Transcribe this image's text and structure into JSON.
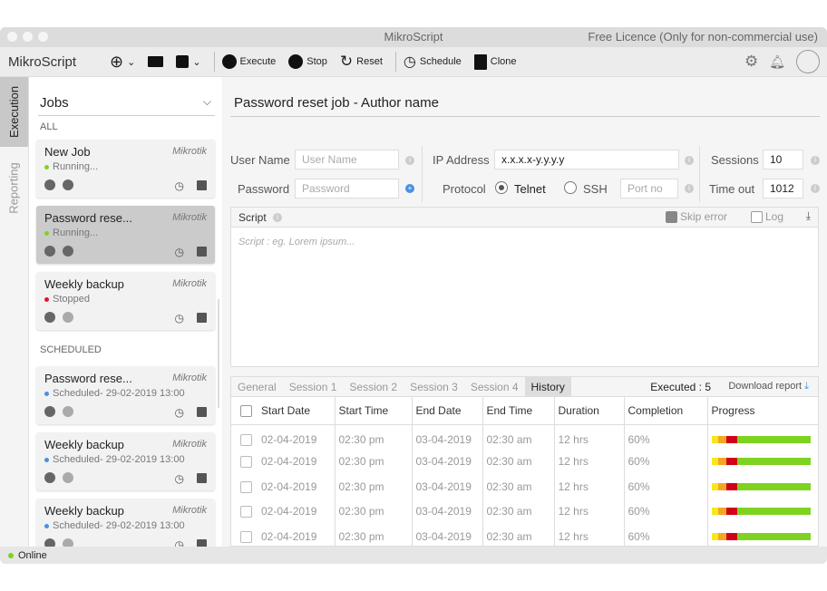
{
  "window": {
    "title": "MikroScript",
    "licence": "Free Licence (Only for non-commercial use)"
  },
  "toolbar": {
    "brand": "MikroScript",
    "execute": "Execute",
    "stop": "Stop",
    "reset": "Reset",
    "schedule": "Schedule",
    "clone": "Clone"
  },
  "vtabs": [
    "Execution",
    "Reporting"
  ],
  "sidebar": {
    "title": "Jobs",
    "section_all": "ALL",
    "section_scheduled": "SCHEDULED",
    "jobs": [
      {
        "name": "New Job",
        "vendor": "Mikrotik",
        "status": "Running...",
        "status_color": "#7ed321"
      },
      {
        "name": "Password rese...",
        "vendor": "Mikrotik",
        "status": "Running...",
        "status_color": "#7ed321"
      },
      {
        "name": "Weekly backup",
        "vendor": "Mikrotik",
        "status": "Stopped",
        "status_color": "#e8112d"
      }
    ],
    "scheduled": [
      {
        "name": "Password rese...",
        "vendor": "Mikrotik",
        "status": "Scheduled",
        "date": " - 29-02-2019 13:00",
        "status_color": "#4a90e2"
      },
      {
        "name": "Weekly backup",
        "vendor": "Mikrotik",
        "status": "Scheduled",
        "date": " - 29-02-2019 13:00",
        "status_color": "#4a90e2"
      },
      {
        "name": "Weekly backup",
        "vendor": "Mikrotik",
        "status": "Scheduled",
        "date": " - 29-02-2019 13:00",
        "status_color": "#4a90e2"
      }
    ]
  },
  "main": {
    "title": "Password reset job - Author name",
    "form": {
      "username_label": "User Name",
      "username_placeholder": "User Name",
      "password_label": "Password",
      "password_placeholder": "Password",
      "ip_label": "IP Address",
      "ip_value": "x.x.x.x-y.y.y.y",
      "protocol_label": "Protocol",
      "telnet": "Telnet",
      "ssh": "SSH",
      "port_placeholder": "Port no",
      "sessions_label": "Sessions",
      "sessions_value": "10",
      "timeout_label": "Time out",
      "timeout_value": "1012"
    },
    "script": {
      "label": "Script",
      "skip_error": "Skip error",
      "log": "Log",
      "placeholder": "Script : eg. Lorem ipsum..."
    },
    "tabs": [
      "General",
      "Session 1",
      "Session 2",
      "Session 3",
      "Session 4",
      "History"
    ],
    "executed": "Executed : 5",
    "download": "Download report",
    "columns": [
      "Start Date",
      "Start Time",
      "End Date",
      "End Time",
      "Duration",
      "Completion",
      "Progress"
    ],
    "rows": [
      [
        "02-04-2019",
        "02:30 pm",
        "03-04-2019",
        "02:30 am",
        "12 hrs",
        "60%"
      ],
      [
        "02-04-2019",
        "02:30 pm",
        "03-04-2019",
        "02:30 am",
        "12 hrs",
        "60%"
      ],
      [
        "02-04-2019",
        "02:30 pm",
        "03-04-2019",
        "02:30 am",
        "12 hrs",
        "60%"
      ],
      [
        "02-04-2019",
        "02:30 pm",
        "03-04-2019",
        "02:30 am",
        "12 hrs",
        "60%"
      ],
      [
        "02-04-2019",
        "02:30 pm",
        "03-04-2019",
        "02:30 am",
        "12 hrs",
        "60%"
      ]
    ],
    "progress_segments": [
      {
        "color": "#f8e71c",
        "fraction": 0.07
      },
      {
        "color": "#f5a623",
        "fraction": 0.08
      },
      {
        "color": "#d0021b",
        "fraction": 0.11
      },
      {
        "color": "#7ed321",
        "fraction": 0.74
      }
    ]
  },
  "status": {
    "text": "Online",
    "color": "#7ed321"
  }
}
